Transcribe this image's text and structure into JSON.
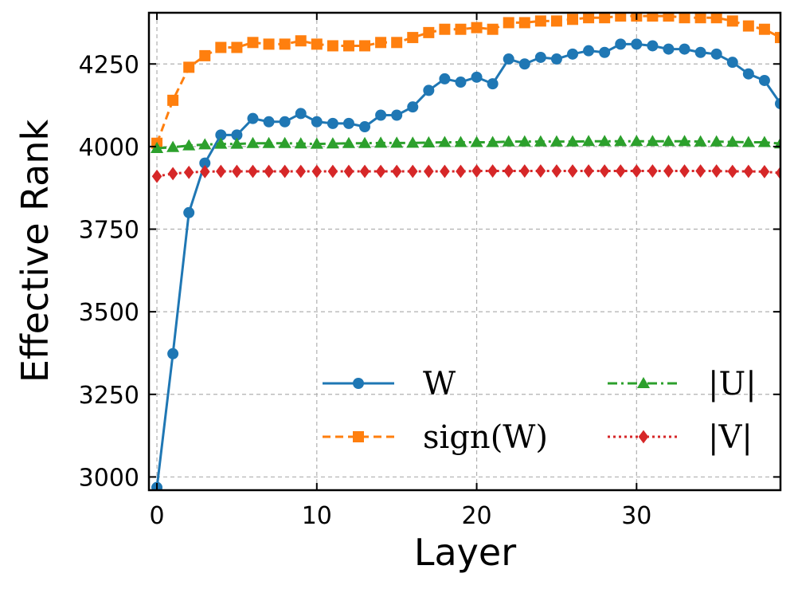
{
  "chart_data": {
    "type": "line",
    "title": "",
    "xlabel": "Layer",
    "ylabel": "Effective Rank",
    "xlim": [
      -0.5,
      39
    ],
    "ylim": [
      2960,
      4405
    ],
    "xticks": [
      0,
      10,
      20,
      30
    ],
    "xtick_labels": [
      "0",
      "10",
      "20",
      "30"
    ],
    "yticks": [
      3000,
      3250,
      3500,
      3750,
      4000,
      4250
    ],
    "ytick_labels": [
      "3000",
      "3250",
      "3500",
      "3750",
      "4000",
      "4250"
    ],
    "grid": true,
    "legend_position": "lower-right",
    "x": [
      0,
      1,
      2,
      3,
      4,
      5,
      6,
      7,
      8,
      9,
      10,
      11,
      12,
      13,
      14,
      15,
      16,
      17,
      18,
      19,
      20,
      21,
      22,
      23,
      24,
      25,
      26,
      27,
      28,
      29,
      30,
      31,
      32,
      33,
      34,
      35,
      36,
      37,
      38,
      39
    ],
    "series": [
      {
        "name": "W",
        "label": "W",
        "color": "#1f77b4",
        "dash": "solid",
        "marker": "circle",
        "values": [
          2968,
          3373,
          3800,
          3950,
          4035,
          4035,
          4085,
          4075,
          4075,
          4100,
          4075,
          4070,
          4070,
          4060,
          4095,
          4095,
          4120,
          4170,
          4205,
          4195,
          4210,
          4190,
          4265,
          4250,
          4270,
          4265,
          4280,
          4290,
          4285,
          4310,
          4310,
          4305,
          4295,
          4295,
          4285,
          4280,
          4255,
          4220,
          4200,
          4130
        ]
      },
      {
        "name": "sign(W)",
        "label": "sign(W)",
        "color": "#ff7f0e",
        "dash": "dashed",
        "marker": "square",
        "values": [
          4010,
          4140,
          4240,
          4275,
          4300,
          4300,
          4315,
          4310,
          4310,
          4320,
          4310,
          4305,
          4305,
          4305,
          4315,
          4315,
          4330,
          4345,
          4355,
          4355,
          4360,
          4355,
          4375,
          4375,
          4380,
          4380,
          4385,
          4390,
          4390,
          4395,
          4395,
          4395,
          4395,
          4390,
          4390,
          4390,
          4380,
          4365,
          4355,
          4330
        ]
      },
      {
        "name": "|U|",
        "label": "|U|",
        "color": "#2ca02c",
        "dash": "dashdot",
        "marker": "triangle",
        "values": [
          3995,
          3998,
          4003,
          4006,
          4008,
          4008,
          4010,
          4010,
          4010,
          4009,
          4008,
          4009,
          4010,
          4010,
          4011,
          4011,
          4011,
          4012,
          4013,
          4013,
          4013,
          4013,
          4015,
          4015,
          4015,
          4015,
          4015,
          4016,
          4016,
          4016,
          4016,
          4016,
          4016,
          4016,
          4015,
          4015,
          4014,
          4013,
          4013,
          4009
        ]
      },
      {
        "name": "|V|",
        "label": "|V|",
        "color": "#d62728",
        "dash": "dotted",
        "marker": "diamond",
        "values": [
          3910,
          3918,
          3922,
          3924,
          3925,
          3925,
          3925,
          3925,
          3925,
          3925,
          3925,
          3925,
          3925,
          3925,
          3925,
          3925,
          3925,
          3925,
          3925,
          3925,
          3926,
          3926,
          3926,
          3926,
          3926,
          3926,
          3926,
          3926,
          3926,
          3926,
          3926,
          3926,
          3926,
          3926,
          3926,
          3926,
          3925,
          3925,
          3924,
          3920
        ]
      }
    ]
  }
}
